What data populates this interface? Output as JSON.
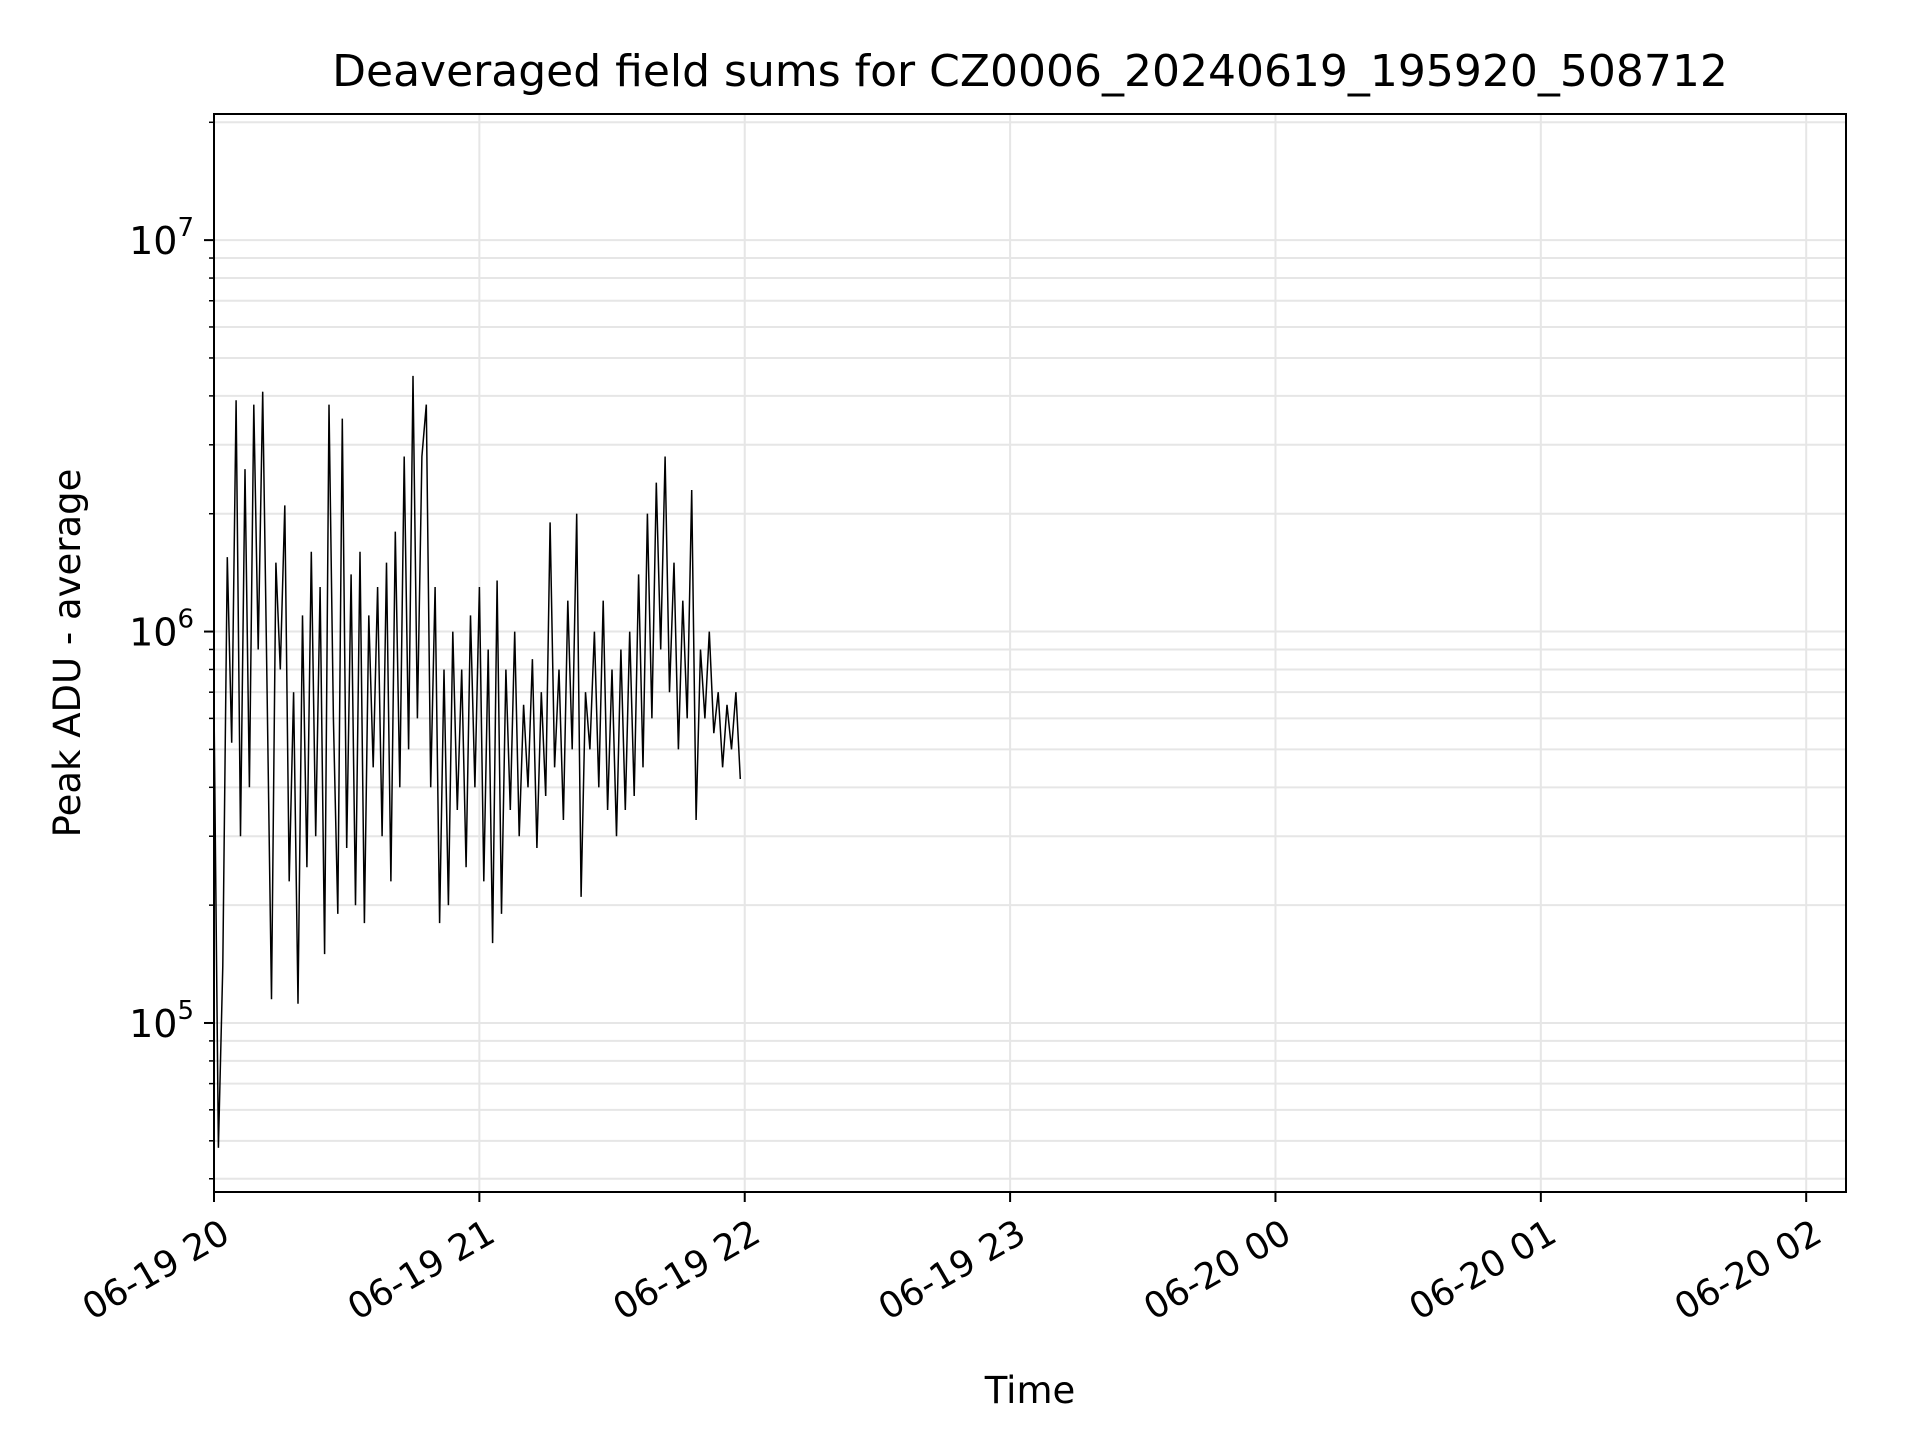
{
  "chart_data": {
    "type": "line",
    "title": "Deaveraged field sums for CZ0006_20240619_195920_508712",
    "xlabel": "Time",
    "ylabel": "Peak ADU - average",
    "yscale": "log",
    "ylim": [
      37000,
      21000000
    ],
    "xlim": [
      "2024-06-19 20:00",
      "2024-06-20 02:09"
    ],
    "xticks": [
      "06-19 20",
      "06-19 21",
      "06-19 22",
      "06-19 23",
      "06-20 00",
      "06-20 01",
      "06-20 02"
    ],
    "yticks": [
      {
        "base": "10",
        "exp": "5"
      },
      {
        "base": "10",
        "exp": "6"
      },
      {
        "base": "10",
        "exp": "7"
      }
    ],
    "grid": true,
    "line_color": "#000000",
    "grid_color": "#e6e6e6",
    "series": [
      {
        "points": [
          [
            "2024-06-19 20:00",
            650000
          ],
          [
            "2024-06-19 20:01",
            48000
          ],
          [
            "2024-06-19 20:02",
            140000
          ],
          [
            "2024-06-19 20:03",
            1550000
          ],
          [
            "2024-06-19 20:04",
            520000
          ],
          [
            "2024-06-19 20:05",
            3900000
          ],
          [
            "2024-06-19 20:06",
            300000
          ],
          [
            "2024-06-19 20:07",
            2600000
          ],
          [
            "2024-06-19 20:08",
            400000
          ],
          [
            "2024-06-19 20:09",
            3800000
          ],
          [
            "2024-06-19 20:10",
            900000
          ],
          [
            "2024-06-19 20:11",
            4100000
          ],
          [
            "2024-06-19 20:12",
            700000
          ],
          [
            "2024-06-19 20:13",
            115000
          ],
          [
            "2024-06-19 20:14",
            1500000
          ],
          [
            "2024-06-19 20:15",
            800000
          ],
          [
            "2024-06-19 20:16",
            2100000
          ],
          [
            "2024-06-19 20:17",
            230000
          ],
          [
            "2024-06-19 20:18",
            700000
          ],
          [
            "2024-06-19 20:19",
            112000
          ],
          [
            "2024-06-19 20:20",
            1100000
          ],
          [
            "2024-06-19 20:21",
            250000
          ],
          [
            "2024-06-19 20:22",
            1600000
          ],
          [
            "2024-06-19 20:23",
            300000
          ],
          [
            "2024-06-19 20:24",
            1300000
          ],
          [
            "2024-06-19 20:25",
            150000
          ],
          [
            "2024-06-19 20:26",
            3800000
          ],
          [
            "2024-06-19 20:27",
            600000
          ],
          [
            "2024-06-19 20:28",
            190000
          ],
          [
            "2024-06-19 20:29",
            3500000
          ],
          [
            "2024-06-19 20:30",
            280000
          ],
          [
            "2024-06-19 20:31",
            1400000
          ],
          [
            "2024-06-19 20:32",
            200000
          ],
          [
            "2024-06-19 20:33",
            1600000
          ],
          [
            "2024-06-19 20:34",
            180000
          ],
          [
            "2024-06-19 20:35",
            1100000
          ],
          [
            "2024-06-19 20:36",
            450000
          ],
          [
            "2024-06-19 20:37",
            1300000
          ],
          [
            "2024-06-19 20:38",
            300000
          ],
          [
            "2024-06-19 20:39",
            1500000
          ],
          [
            "2024-06-19 20:40",
            230000
          ],
          [
            "2024-06-19 20:41",
            1800000
          ],
          [
            "2024-06-19 20:42",
            400000
          ],
          [
            "2024-06-19 20:43",
            2800000
          ],
          [
            "2024-06-19 20:44",
            500000
          ],
          [
            "2024-06-19 20:45",
            4500000
          ],
          [
            "2024-06-19 20:46",
            600000
          ],
          [
            "2024-06-19 20:47",
            2800000
          ],
          [
            "2024-06-19 20:48",
            3800000
          ],
          [
            "2024-06-19 20:49",
            400000
          ],
          [
            "2024-06-19 20:50",
            1300000
          ],
          [
            "2024-06-19 20:51",
            180000
          ],
          [
            "2024-06-19 20:52",
            800000
          ],
          [
            "2024-06-19 20:53",
            200000
          ],
          [
            "2024-06-19 20:54",
            1000000
          ],
          [
            "2024-06-19 20:55",
            350000
          ],
          [
            "2024-06-19 20:56",
            800000
          ],
          [
            "2024-06-19 20:57",
            250000
          ],
          [
            "2024-06-19 20:58",
            1100000
          ],
          [
            "2024-06-19 20:59",
            400000
          ],
          [
            "2024-06-19 21:00",
            1300000
          ],
          [
            "2024-06-19 21:01",
            230000
          ],
          [
            "2024-06-19 21:02",
            900000
          ],
          [
            "2024-06-19 21:03",
            160000
          ],
          [
            "2024-06-19 21:04",
            1350000
          ],
          [
            "2024-06-19 21:05",
            190000
          ],
          [
            "2024-06-19 21:06",
            800000
          ],
          [
            "2024-06-19 21:07",
            350000
          ],
          [
            "2024-06-19 21:08",
            1000000
          ],
          [
            "2024-06-19 21:09",
            300000
          ],
          [
            "2024-06-19 21:10",
            650000
          ],
          [
            "2024-06-19 21:11",
            400000
          ],
          [
            "2024-06-19 21:12",
            850000
          ],
          [
            "2024-06-19 21:13",
            280000
          ],
          [
            "2024-06-19 21:14",
            700000
          ],
          [
            "2024-06-19 21:15",
            380000
          ],
          [
            "2024-06-19 21:16",
            1900000
          ],
          [
            "2024-06-19 21:17",
            450000
          ],
          [
            "2024-06-19 21:18",
            800000
          ],
          [
            "2024-06-19 21:19",
            330000
          ],
          [
            "2024-06-19 21:20",
            1200000
          ],
          [
            "2024-06-19 21:21",
            500000
          ],
          [
            "2024-06-19 21:22",
            2000000
          ],
          [
            "2024-06-19 21:23",
            210000
          ],
          [
            "2024-06-19 21:24",
            700000
          ],
          [
            "2024-06-19 21:25",
            500000
          ],
          [
            "2024-06-19 21:26",
            1000000
          ],
          [
            "2024-06-19 21:27",
            400000
          ],
          [
            "2024-06-19 21:28",
            1200000
          ],
          [
            "2024-06-19 21:29",
            350000
          ],
          [
            "2024-06-19 21:30",
            800000
          ],
          [
            "2024-06-19 21:31",
            300000
          ],
          [
            "2024-06-19 21:32",
            900000
          ],
          [
            "2024-06-19 21:33",
            350000
          ],
          [
            "2024-06-19 21:34",
            1000000
          ],
          [
            "2024-06-19 21:35",
            380000
          ],
          [
            "2024-06-19 21:36",
            1400000
          ],
          [
            "2024-06-19 21:37",
            450000
          ],
          [
            "2024-06-19 21:38",
            2000000
          ],
          [
            "2024-06-19 21:39",
            600000
          ],
          [
            "2024-06-19 21:40",
            2400000
          ],
          [
            "2024-06-19 21:41",
            900000
          ],
          [
            "2024-06-19 21:42",
            2800000
          ],
          [
            "2024-06-19 21:43",
            700000
          ],
          [
            "2024-06-19 21:44",
            1500000
          ],
          [
            "2024-06-19 21:45",
            500000
          ],
          [
            "2024-06-19 21:46",
            1200000
          ],
          [
            "2024-06-19 21:47",
            600000
          ],
          [
            "2024-06-19 21:48",
            2300000
          ],
          [
            "2024-06-19 21:49",
            330000
          ],
          [
            "2024-06-19 21:50",
            900000
          ],
          [
            "2024-06-19 21:51",
            600000
          ],
          [
            "2024-06-19 21:52",
            1000000
          ],
          [
            "2024-06-19 21:53",
            550000
          ],
          [
            "2024-06-19 21:54",
            700000
          ],
          [
            "2024-06-19 21:55",
            450000
          ],
          [
            "2024-06-19 21:56",
            650000
          ],
          [
            "2024-06-19 21:57",
            500000
          ],
          [
            "2024-06-19 21:58",
            700000
          ],
          [
            "2024-06-19 21:59",
            420000
          ]
        ]
      }
    ]
  }
}
